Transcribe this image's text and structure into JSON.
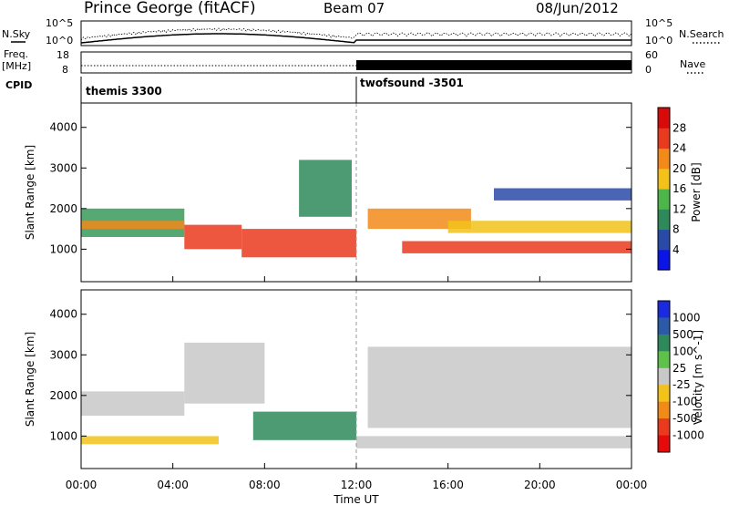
{
  "header": {
    "station": "Prince George (fitACF)",
    "beam": "Beam 07",
    "date": "08/Jun/2012"
  },
  "side_labels": {
    "nsky": "N.Sky",
    "nsearch": "N.Search",
    "freq": "Freq.",
    "mhz": "[MHz]",
    "nave": "Nave",
    "cpid": "CPID"
  },
  "noise_panel": {
    "left_ticks": [
      "10^5",
      "10^0"
    ],
    "right_ticks": [
      "10^5",
      "10^0"
    ]
  },
  "freq_panel": {
    "left_ticks": [
      "18",
      "8"
    ],
    "right_ticks": [
      "60",
      "0"
    ]
  },
  "cpid_panel": {
    "programs": [
      {
        "name": "themis 3300",
        "start_hour": 0.0
      },
      {
        "name": "twofsound -3501",
        "start_hour": 12.0
      }
    ]
  },
  "chart_data": [
    {
      "type": "heatmap",
      "parameter": "power",
      "ylabel": "Slant Range [km]",
      "xlabel": "",
      "ylim": [
        200,
        4600
      ],
      "yticks": [
        "1000",
        "2000",
        "3000",
        "4000"
      ],
      "xlim": [
        0,
        24
      ],
      "colorbar": {
        "label": "Power [dB]",
        "ticks": [
          "4",
          "8",
          "12",
          "16",
          "20",
          "24",
          "28"
        ],
        "colors": [
          "#0a14e6",
          "#2a4aa8",
          "#2e8a5a",
          "#4cb64a",
          "#f2c21a",
          "#f28a1a",
          "#ea3a1e",
          "#d80a0a"
        ]
      },
      "regions": [
        {
          "t0": 0.0,
          "t1": 4.5,
          "r0": 1300,
          "r1": 2000,
          "level": "#3a9a5a"
        },
        {
          "t0": 0.0,
          "t1": 4.5,
          "r0": 1500,
          "r1": 1700,
          "level": "#f28a1a"
        },
        {
          "t0": 4.5,
          "t1": 7.0,
          "r0": 1000,
          "r1": 1600,
          "level": "#ea3a1e"
        },
        {
          "t0": 7.0,
          "t1": 12.0,
          "r0": 800,
          "r1": 1500,
          "level": "#ea3a1e"
        },
        {
          "t0": 9.5,
          "t1": 11.8,
          "r0": 1800,
          "r1": 3200,
          "level": "#2e8a5a"
        },
        {
          "t0": 12.5,
          "t1": 17.0,
          "r0": 1500,
          "r1": 2000,
          "level": "#f28a1a"
        },
        {
          "t0": 14.0,
          "t1": 24.0,
          "r0": 900,
          "r1": 1200,
          "level": "#ea3a1e"
        },
        {
          "t0": 16.0,
          "t1": 24.0,
          "r0": 1400,
          "r1": 1700,
          "level": "#f2c21a"
        },
        {
          "t0": 18.0,
          "t1": 24.0,
          "r0": 2200,
          "r1": 2500,
          "level": "#2a4aa8"
        }
      ]
    },
    {
      "type": "heatmap",
      "parameter": "velocity",
      "ylabel": "Slant Range [km]",
      "xlabel": "Time UT",
      "ylim": [
        200,
        4600
      ],
      "yticks": [
        "1000",
        "2000",
        "3000",
        "4000"
      ],
      "xlim": [
        0,
        24
      ],
      "xticks": [
        "00:00",
        "04:00",
        "08:00",
        "12:00",
        "16:00",
        "20:00",
        "00:00"
      ],
      "colorbar": {
        "label": "Velocity [m s^-1]",
        "ticks": [
          "1000",
          "500",
          "100",
          "25",
          "-25",
          "-100",
          "-500",
          "-1000"
        ],
        "colors": [
          "#1a2ae0",
          "#2a5aa8",
          "#2e8a5a",
          "#5ec24a",
          "#c8c8c8",
          "#f2c21a",
          "#f28a1a",
          "#ea3a1e",
          "#e60a0a"
        ]
      },
      "regions": [
        {
          "t0": 0.0,
          "t1": 4.5,
          "r0": 1500,
          "r1": 2100,
          "level": "#c8c8c8"
        },
        {
          "t0": 0.0,
          "t1": 6.0,
          "r0": 800,
          "r1": 1000,
          "level": "#f2c21a"
        },
        {
          "t0": 4.5,
          "t1": 8.0,
          "r0": 1800,
          "r1": 3300,
          "level": "#c8c8c8"
        },
        {
          "t0": 7.5,
          "t1": 12.0,
          "r0": 900,
          "r1": 1600,
          "level": "#2e8a5a"
        },
        {
          "t0": 12.5,
          "t1": 24.0,
          "r0": 1200,
          "r1": 3200,
          "level": "#c8c8c8"
        },
        {
          "t0": 12.0,
          "t1": 24.0,
          "r0": 700,
          "r1": 1000,
          "level": "#c8c8c8"
        }
      ]
    }
  ]
}
